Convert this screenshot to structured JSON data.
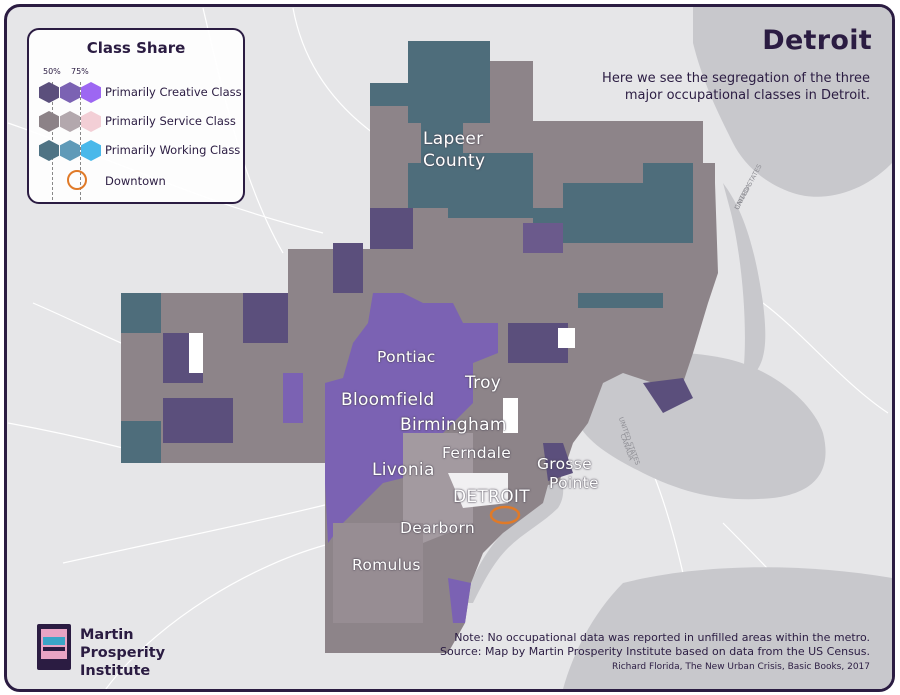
{
  "title": "Detroit",
  "subtitle": "Here we see the segregation of the three major occupational classes in Detroit.",
  "legend": {
    "title": "Class Share",
    "pct_low": "50%",
    "pct_high": "75%",
    "items": [
      {
        "label": "Primarily Creative Class",
        "colors": [
          "#5b4f7c",
          "#7b62b3",
          "#9d67f2"
        ]
      },
      {
        "label": "Primarily Service Class",
        "colors": [
          "#8c8287",
          "#b3a8ad",
          "#f3cfd6"
        ]
      },
      {
        "label": "Primarily Working Class",
        "colors": [
          "#4f7384",
          "#5f9ab8",
          "#49b8ea"
        ]
      }
    ],
    "downtown_label": "Downtown"
  },
  "places": {
    "lapeer": "Lapeer",
    "county": "County",
    "pontiac": "Pontiac",
    "troy": "Troy",
    "bloomfield": "Bloomfield",
    "birmingham": "Birmingham",
    "ferndale": "Ferndale",
    "livonia": "Livonia",
    "grosse": "Grosse",
    "pointe": "Pointe",
    "detroit": "DETROIT",
    "dearborn": "Dearborn",
    "romulus": "Romulus"
  },
  "water_labels": {
    "us1": "UNITED STATES",
    "ca1": "CANADA",
    "us2": "UNITED STATES",
    "ca2": "CANADA"
  },
  "notes": {
    "line1": "Note: No occupational data was reported in unfilled areas within the metro.",
    "line2": "Source: Map by Martin Prosperity Institute based on data from the US Census.",
    "credit": "Richard Florida, The New Urban Crisis, Basic Books, 2017"
  },
  "logo": {
    "line1": "Martin",
    "line2": "Prosperity",
    "line3": "Institute"
  },
  "colors": {
    "service": "#8c8287",
    "service_light": "#b3a8ad",
    "creative": "#5b4f7c",
    "creative_bright": "#7b62b3",
    "working": "#4f7384",
    "downtown": "#e07a28",
    "water": "#c8c8cc",
    "frame": "#2b1c42"
  }
}
